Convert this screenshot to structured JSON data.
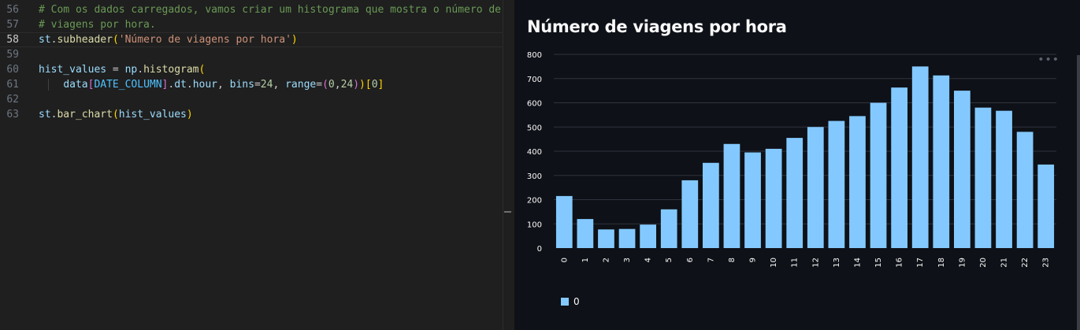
{
  "editor": {
    "active_line": 58,
    "lines": [
      {
        "num": "56",
        "tokens": [
          {
            "t": "# Com os dados carregados, vamos criar um histograma que mostra o número de",
            "c": "comment"
          }
        ]
      },
      {
        "num": "57",
        "tokens": [
          {
            "t": "# viagens por hora.",
            "c": "comment"
          }
        ]
      },
      {
        "num": "58",
        "tokens": [
          {
            "t": "st",
            "c": "var"
          },
          {
            "t": ".",
            "c": "plain"
          },
          {
            "t": "subheader",
            "c": "func"
          },
          {
            "t": "(",
            "c": "p1"
          },
          {
            "t": "'Número de viagens por hora'",
            "c": "str"
          },
          {
            "t": ")",
            "c": "p1"
          }
        ]
      },
      {
        "num": "59",
        "tokens": []
      },
      {
        "num": "60",
        "tokens": [
          {
            "t": "hist_values",
            "c": "var"
          },
          {
            "t": " = ",
            "c": "plain"
          },
          {
            "t": "np",
            "c": "var"
          },
          {
            "t": ".",
            "c": "plain"
          },
          {
            "t": "histogram",
            "c": "func"
          },
          {
            "t": "(",
            "c": "p1"
          }
        ]
      },
      {
        "num": "61",
        "indent": true,
        "tokens": [
          {
            "t": "    ",
            "c": "plain"
          },
          {
            "t": "data",
            "c": "var"
          },
          {
            "t": "[",
            "c": "p2"
          },
          {
            "t": "DATE_COLUMN",
            "c": "const"
          },
          {
            "t": "]",
            "c": "p2"
          },
          {
            "t": ".",
            "c": "plain"
          },
          {
            "t": "dt",
            "c": "var"
          },
          {
            "t": ".",
            "c": "plain"
          },
          {
            "t": "hour",
            "c": "var"
          },
          {
            "t": ", ",
            "c": "plain"
          },
          {
            "t": "bins",
            "c": "var"
          },
          {
            "t": "=",
            "c": "plain"
          },
          {
            "t": "24",
            "c": "num"
          },
          {
            "t": ", ",
            "c": "plain"
          },
          {
            "t": "range",
            "c": "var"
          },
          {
            "t": "=",
            "c": "plain"
          },
          {
            "t": "(",
            "c": "p2"
          },
          {
            "t": "0",
            "c": "num"
          },
          {
            "t": ",",
            "c": "plain"
          },
          {
            "t": "24",
            "c": "num"
          },
          {
            "t": ")",
            "c": "p2"
          },
          {
            "t": ")",
            "c": "p1"
          },
          {
            "t": "[",
            "c": "p1"
          },
          {
            "t": "0",
            "c": "num"
          },
          {
            "t": "]",
            "c": "p1"
          }
        ]
      },
      {
        "num": "62",
        "tokens": []
      },
      {
        "num": "63",
        "tokens": [
          {
            "t": "st",
            "c": "var"
          },
          {
            "t": ".",
            "c": "plain"
          },
          {
            "t": "bar_chart",
            "c": "func"
          },
          {
            "t": "(",
            "c": "p1"
          },
          {
            "t": "hist_values",
            "c": "var"
          },
          {
            "t": ")",
            "c": "p1"
          }
        ]
      }
    ]
  },
  "preview": {
    "subheader": "Número de viagens por hora",
    "more_icon": "more-horizontal-icon",
    "more_glyph": "•••"
  },
  "colors": {
    "bar": "#83c9ff",
    "grid": "#31333f",
    "axis_text": "#fafafa",
    "background": "#0e1117"
  },
  "chart_data": {
    "type": "bar",
    "categories": [
      "0",
      "1",
      "2",
      "3",
      "4",
      "5",
      "6",
      "7",
      "8",
      "9",
      "10",
      "11",
      "12",
      "13",
      "14",
      "15",
      "16",
      "17",
      "18",
      "19",
      "20",
      "21",
      "22",
      "23"
    ],
    "series": [
      {
        "name": "0",
        "values": [
          215,
          120,
          77,
          79,
          97,
          160,
          280,
          352,
          430,
          395,
          410,
          455,
          500,
          525,
          545,
          600,
          663,
          750,
          713,
          650,
          580,
          567,
          480,
          345
        ]
      }
    ],
    "yticks": [
      0,
      100,
      200,
      300,
      400,
      500,
      600,
      700,
      800
    ],
    "ylim": [
      0,
      800
    ],
    "grid": true,
    "legend": {
      "placement": "bottom-left",
      "label": "0"
    },
    "xlabel": "",
    "ylabel": ""
  }
}
